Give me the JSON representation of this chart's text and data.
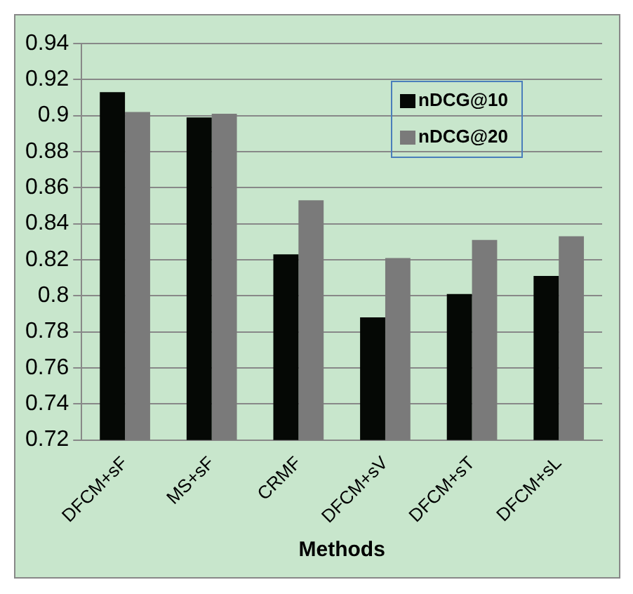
{
  "chart_data": {
    "type": "bar",
    "xlabel": "Methods",
    "categories": [
      "DFCM+sF",
      "MS+sF",
      "CRMF",
      "DFCM+sV",
      "DFCM+sT",
      "DFCM+sL"
    ],
    "series": [
      {
        "name": "nDCG@10",
        "color": "#050805",
        "values": [
          0.913,
          0.899,
          0.823,
          0.788,
          0.801,
          0.811
        ]
      },
      {
        "name": "nDCG@20",
        "color": "#7a7a7a",
        "values": [
          0.902,
          0.901,
          0.853,
          0.821,
          0.831,
          0.833
        ]
      }
    ],
    "ylim": [
      0.72,
      0.94
    ],
    "yticks": [
      0.72,
      0.74,
      0.76,
      0.78,
      0.8,
      0.82,
      0.84,
      0.86,
      0.88,
      0.9,
      0.92,
      0.94
    ],
    "grid": "y",
    "legend": "top right"
  }
}
